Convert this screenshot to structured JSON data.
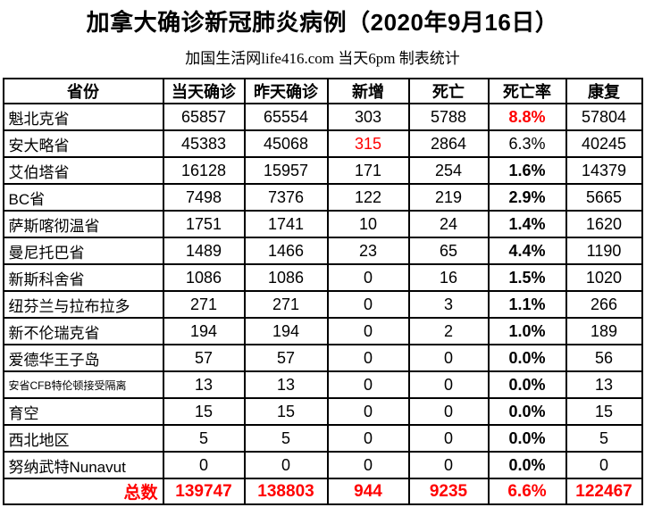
{
  "title": "加拿大确诊新冠肺炎病例（2020年9月16日）",
  "subtitle": "加国生活网life416.com 当天6pm 制表统计",
  "colors": {
    "accent_red": "#ff0000",
    "text_black": "#000000",
    "border": "#000000",
    "background": "#ffffff"
  },
  "table": {
    "headers": [
      "省份",
      "当天确诊",
      "昨天确诊",
      "新增",
      "死亡",
      "死亡率",
      "康复"
    ],
    "rows": [
      {
        "cells": [
          "魁北克省",
          "65857",
          "65554",
          "303",
          "5788",
          "8.8%",
          "57804"
        ],
        "styles": [
          null,
          null,
          null,
          null,
          null,
          "red bold",
          null
        ]
      },
      {
        "cells": [
          "安大略省",
          "45383",
          "45068",
          "315",
          "2864",
          "6.3%",
          "40245"
        ],
        "styles": [
          null,
          null,
          null,
          "red",
          null,
          null,
          null
        ]
      },
      {
        "cells": [
          "艾伯塔省",
          "16128",
          "15957",
          "171",
          "254",
          "1.6%",
          "14379"
        ],
        "styles": [
          null,
          null,
          null,
          null,
          null,
          "bold",
          null
        ]
      },
      {
        "cells": [
          "BC省",
          "7498",
          "7376",
          "122",
          "219",
          "2.9%",
          "5665"
        ],
        "styles": [
          null,
          null,
          null,
          null,
          null,
          "bold",
          null
        ]
      },
      {
        "cells": [
          "萨斯喀彻温省",
          "1751",
          "1741",
          "10",
          "24",
          "1.4%",
          "1620"
        ],
        "styles": [
          null,
          null,
          null,
          null,
          null,
          "bold",
          null
        ]
      },
      {
        "cells": [
          "曼尼托巴省",
          "1489",
          "1466",
          "23",
          "65",
          "4.4%",
          "1190"
        ],
        "styles": [
          null,
          null,
          null,
          null,
          null,
          "bold",
          null
        ]
      },
      {
        "cells": [
          "新斯科舍省",
          "1086",
          "1086",
          "0",
          "16",
          "1.5%",
          "1020"
        ],
        "styles": [
          null,
          null,
          null,
          null,
          null,
          "bold",
          null
        ]
      },
      {
        "cells": [
          "纽芬兰与拉布拉多",
          "271",
          "271",
          "0",
          "3",
          "1.1%",
          "266"
        ],
        "styles": [
          null,
          null,
          null,
          null,
          null,
          "bold",
          null
        ]
      },
      {
        "cells": [
          "新不伦瑞克省",
          "194",
          "194",
          "0",
          "2",
          "1.0%",
          "189"
        ],
        "styles": [
          null,
          null,
          null,
          null,
          null,
          "bold",
          null
        ]
      },
      {
        "cells": [
          "爱德华王子岛",
          "57",
          "57",
          "0",
          "0",
          "0.0%",
          "56"
        ],
        "styles": [
          null,
          null,
          null,
          null,
          null,
          "bold",
          null
        ]
      },
      {
        "cells": [
          "安省CFB特伦顿接受隔离",
          "13",
          "13",
          "0",
          "0",
          "0.0%",
          "13"
        ],
        "styles": [
          "small",
          null,
          null,
          null,
          null,
          "bold",
          null
        ]
      },
      {
        "cells": [
          "育空",
          "15",
          "15",
          "0",
          "0",
          "0.0%",
          "15"
        ],
        "styles": [
          null,
          null,
          null,
          null,
          null,
          "bold",
          null
        ]
      },
      {
        "cells": [
          "西北地区",
          "5",
          "5",
          "0",
          "0",
          "0.0%",
          "5"
        ],
        "styles": [
          null,
          null,
          null,
          null,
          null,
          "bold",
          null
        ]
      },
      {
        "cells": [
          "努纳武特Nunavut",
          "0",
          "0",
          "0",
          "0",
          "0.0%",
          "0"
        ],
        "styles": [
          null,
          null,
          null,
          null,
          null,
          "bold",
          null
        ]
      },
      {
        "cells": [
          "总数",
          "139747",
          "138803",
          "944",
          "9235",
          "6.6%",
          "122467"
        ],
        "row_class": "total-row",
        "styles": [
          "total-label",
          null,
          null,
          null,
          null,
          null,
          null
        ]
      }
    ]
  },
  "chart_data": {
    "type": "table",
    "title": "加拿大确诊新冠肺炎病例（2020年9月16日）",
    "subtitle": "加国生活网life416.com 当天6pm 制表统计",
    "columns": [
      "省份",
      "当天确诊",
      "昨天确诊",
      "新增",
      "死亡",
      "死亡率",
      "康复"
    ],
    "rows": [
      [
        "魁北克省",
        65857,
        65554,
        303,
        5788,
        "8.8%",
        57804
      ],
      [
        "安大略省",
        45383,
        45068,
        315,
        2864,
        "6.3%",
        40245
      ],
      [
        "艾伯塔省",
        16128,
        15957,
        171,
        254,
        "1.6%",
        14379
      ],
      [
        "BC省",
        7498,
        7376,
        122,
        219,
        "2.9%",
        5665
      ],
      [
        "萨斯喀彻温省",
        1751,
        1741,
        10,
        24,
        "1.4%",
        1620
      ],
      [
        "曼尼托巴省",
        1489,
        1466,
        23,
        65,
        "4.4%",
        1190
      ],
      [
        "新斯科舍省",
        1086,
        1086,
        0,
        16,
        "1.5%",
        1020
      ],
      [
        "纽芬兰与拉布拉多",
        271,
        271,
        0,
        3,
        "1.1%",
        266
      ],
      [
        "新不伦瑞克省",
        194,
        194,
        0,
        2,
        "1.0%",
        189
      ],
      [
        "爱德华王子岛",
        57,
        57,
        0,
        0,
        "0.0%",
        56
      ],
      [
        "安省CFB特伦顿接受隔离",
        13,
        13,
        0,
        0,
        "0.0%",
        13
      ],
      [
        "育空",
        15,
        15,
        0,
        0,
        "0.0%",
        15
      ],
      [
        "西北地区",
        5,
        5,
        0,
        0,
        "0.0%",
        5
      ],
      [
        "努纳武特Nunavut",
        0,
        0,
        0,
        0,
        "0.0%",
        0
      ]
    ],
    "total_row": [
      "总数",
      139747,
      138803,
      944,
      9235,
      "6.6%",
      122467
    ],
    "emphasis": {
      "red_cells": [
        "魁北克省 死亡率 8.8%",
        "安大略省 新增 315",
        "总数 row"
      ],
      "bold_column": "死亡率"
    }
  }
}
